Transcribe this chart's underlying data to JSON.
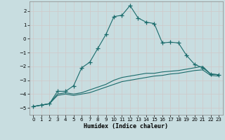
{
  "xlabel": "Humidex (Indice chaleur)",
  "background_color": "#c8dde0",
  "grid_color": "#b8cdd0",
  "line_color": "#1a6b6b",
  "xlim": [
    -0.5,
    23.5
  ],
  "ylim": [
    -5.5,
    2.7
  ],
  "yticks": [
    -5,
    -4,
    -3,
    -2,
    -1,
    0,
    1,
    2
  ],
  "xticks": [
    0,
    1,
    2,
    3,
    4,
    5,
    6,
    7,
    8,
    9,
    10,
    11,
    12,
    13,
    14,
    15,
    16,
    17,
    18,
    19,
    20,
    21,
    22,
    23
  ],
  "series1_x": [
    0,
    1,
    2,
    3,
    4,
    5,
    6,
    7,
    8,
    9,
    10,
    11,
    12,
    13,
    14,
    15,
    16,
    17,
    18,
    19,
    20,
    21,
    22,
    23
  ],
  "series1_y": [
    -4.9,
    -4.8,
    -4.7,
    -3.8,
    -3.8,
    -3.4,
    -2.1,
    -1.7,
    -0.7,
    0.3,
    1.6,
    1.7,
    2.4,
    1.5,
    1.2,
    1.1,
    -0.3,
    -0.25,
    -0.3,
    -1.2,
    -1.85,
    -2.1,
    -2.55,
    -2.6
  ],
  "series2_x": [
    0,
    1,
    2,
    3,
    4,
    5,
    6,
    7,
    8,
    9,
    10,
    11,
    12,
    13,
    14,
    15,
    16,
    17,
    18,
    19,
    20,
    21,
    22,
    23
  ],
  "series2_y": [
    -4.9,
    -4.8,
    -4.7,
    -4.0,
    -3.9,
    -4.0,
    -3.9,
    -3.7,
    -3.5,
    -3.3,
    -3.0,
    -2.8,
    -2.7,
    -2.6,
    -2.5,
    -2.5,
    -2.4,
    -2.35,
    -2.3,
    -2.2,
    -2.1,
    -2.0,
    -2.55,
    -2.6
  ],
  "series3_x": [
    0,
    1,
    2,
    3,
    4,
    5,
    6,
    7,
    8,
    9,
    10,
    11,
    12,
    13,
    14,
    15,
    16,
    17,
    18,
    19,
    20,
    21,
    22,
    23
  ],
  "series3_y": [
    -4.9,
    -4.8,
    -4.7,
    -4.1,
    -4.0,
    -4.1,
    -4.0,
    -3.9,
    -3.7,
    -3.5,
    -3.3,
    -3.1,
    -3.0,
    -2.9,
    -2.8,
    -2.7,
    -2.65,
    -2.55,
    -2.5,
    -2.4,
    -2.3,
    -2.25,
    -2.65,
    -2.7
  ]
}
